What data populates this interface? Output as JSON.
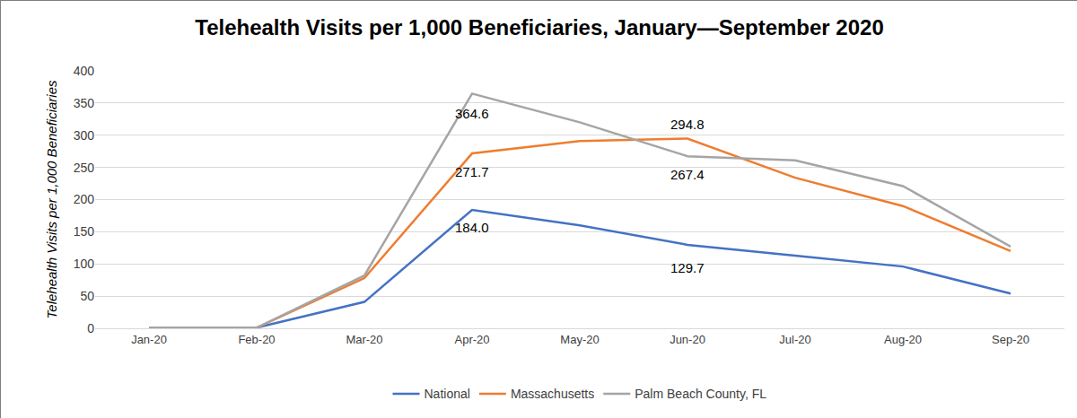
{
  "chart_data": {
    "type": "line",
    "title": "Telehealth Visits per 1,000 Beneficiaries, January—September 2020",
    "y_label": "Telehealth Visits per 1,000 Beneficiaries",
    "categories": [
      "Jan-20",
      "Feb-20",
      "Mar-20",
      "Apr-20",
      "May-20",
      "Jun-20",
      "Jul-20",
      "Aug-20",
      "Sep-20"
    ],
    "series": [
      {
        "name": "National",
        "color": "#4472c4",
        "values": [
          1,
          1,
          41,
          184.0,
          160,
          129.7,
          113,
          96,
          54
        ],
        "value_labels": [
          null,
          null,
          null,
          "184.0",
          null,
          "129.7",
          null,
          null,
          null
        ]
      },
      {
        "name": "Massachusetts",
        "color": "#ed7d31",
        "values": [
          1,
          1,
          78,
          271.7,
          291,
          294.8,
          234,
          190,
          120
        ],
        "value_labels": [
          null,
          null,
          null,
          "271.7",
          null,
          "294.8",
          null,
          null,
          null
        ]
      },
      {
        "name": "Palm Beach County, FL",
        "color": "#a5a5a5",
        "values": [
          1,
          1,
          82,
          364.6,
          320,
          267.4,
          261,
          221,
          127
        ],
        "value_labels": [
          null,
          null,
          null,
          "364.6",
          null,
          "267.4",
          null,
          null,
          null
        ]
      }
    ],
    "ylim": [
      0,
      400
    ],
    "yticks": [
      0,
      50,
      100,
      150,
      200,
      250,
      300,
      350,
      400
    ],
    "grid": true,
    "legend": "bottom",
    "data_labels": true
  }
}
